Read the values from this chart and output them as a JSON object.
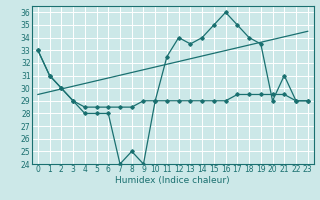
{
  "xlabel": "Humidex (Indice chaleur)",
  "bg_color": "#cce8e8",
  "grid_color": "#ffffff",
  "line_color": "#1a7070",
  "xmin": -0.5,
  "xmax": 23.5,
  "ymin": 24,
  "ymax": 36.5,
  "series1_x": [
    0,
    1,
    2,
    3,
    4,
    5,
    6,
    7,
    8,
    9,
    10,
    11,
    12,
    13,
    14,
    15,
    16,
    17,
    18,
    19,
    20,
    21,
    22,
    23
  ],
  "series1_y": [
    33,
    31,
    30,
    29,
    28,
    28,
    28,
    24,
    25,
    24,
    29,
    32.5,
    34,
    33.5,
    34,
    35,
    36,
    35,
    34,
    33.5,
    29,
    31,
    29,
    29
  ],
  "series2_x": [
    0,
    1,
    2,
    3,
    4,
    5,
    6,
    7,
    8,
    9,
    10,
    11,
    12,
    13,
    14,
    15,
    16,
    17,
    18,
    19,
    20,
    21,
    22,
    23
  ],
  "series2_y": [
    33,
    31,
    30,
    29,
    28.5,
    28.5,
    28.5,
    28.5,
    28.5,
    29,
    29,
    29,
    29,
    29,
    29,
    29,
    29,
    29.5,
    29.5,
    29.5,
    29.5,
    29.5,
    29,
    29
  ],
  "trend_x": [
    0,
    23
  ],
  "trend_y": [
    29.5,
    34.5
  ],
  "yticks": [
    24,
    25,
    26,
    27,
    28,
    29,
    30,
    31,
    32,
    33,
    34,
    35,
    36
  ],
  "xticks": [
    0,
    1,
    2,
    3,
    4,
    5,
    6,
    7,
    8,
    9,
    10,
    11,
    12,
    13,
    14,
    15,
    16,
    17,
    18,
    19,
    20,
    21,
    22,
    23
  ],
  "tick_fontsize": 5.5,
  "xlabel_fontsize": 6.5
}
